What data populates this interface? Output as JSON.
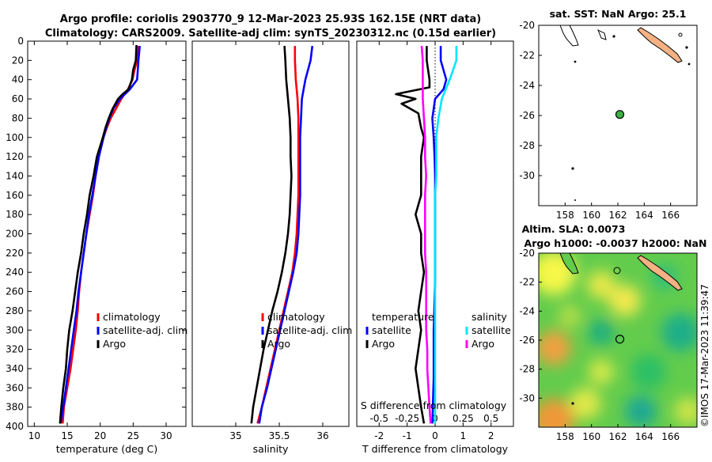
{
  "titles": {
    "line1": "Argo profile: coriolis 2903770_9 12-Mar-2023 25.93S 162.15E (NRT data)",
    "line2": "Climatology: CARS2009. Satellite-adj clim: synTS_20230312.nc (0.15d earlier)"
  },
  "colors": {
    "climatology": "#ff0000",
    "satellite": "#0000ff",
    "argo": "#000000",
    "sal_satellite": "#00e5ff",
    "sal_argo": "#ff00ff",
    "land": "#f4b183"
  },
  "chart_data": [
    {
      "type": "line",
      "name": "temperature-profile",
      "xlabel": "temperature (deg C)",
      "ylabel": "",
      "xlim": [
        9,
        33
      ],
      "ylim": [
        0,
        400
      ],
      "x_ticks": [
        "10",
        "15",
        "20",
        "25",
        "30"
      ],
      "x_tick_values": [
        10,
        15,
        20,
        25,
        30
      ],
      "y_ticks": [
        "0",
        "20",
        "40",
        "60",
        "80",
        "100",
        "120",
        "140",
        "160",
        "180",
        "200",
        "220",
        "240",
        "260",
        "280",
        "300",
        "320",
        "340",
        "360",
        "380",
        "400"
      ],
      "y_tick_values": [
        0,
        20,
        40,
        60,
        80,
        100,
        120,
        140,
        160,
        180,
        200,
        220,
        240,
        260,
        280,
        300,
        320,
        340,
        360,
        380,
        400
      ],
      "legend": [
        "climatology",
        "satellite-adj. clim",
        "Argo"
      ],
      "legend_colors": [
        "#ff0000",
        "#0000ff",
        "#000000"
      ],
      "series": [
        {
          "name": "climatology",
          "color": "#ff0000",
          "depth": [
            5,
            20,
            30,
            40,
            50,
            60,
            70,
            80,
            90,
            100,
            120,
            140,
            160,
            180,
            200,
            220,
            240,
            260,
            280,
            300,
            320,
            340,
            360,
            380,
            397
          ],
          "values": [
            25.8,
            25.6,
            25.2,
            24.9,
            24.2,
            23.2,
            22.4,
            21.6,
            21.0,
            20.5,
            19.8,
            19.3,
            18.9,
            18.4,
            17.9,
            17.5,
            17.1,
            16.8,
            16.6,
            16.3,
            15.9,
            15.5,
            15.0,
            14.5,
            14.3
          ]
        },
        {
          "name": "satellite-adj. clim",
          "color": "#0000ff",
          "depth": [
            5,
            20,
            30,
            40,
            50,
            60,
            70,
            80,
            90,
            100,
            120,
            140,
            160,
            180,
            200,
            220,
            240,
            260,
            280,
            300,
            320,
            340,
            360,
            380,
            397
          ],
          "values": [
            26.0,
            25.8,
            25.7,
            25.6,
            24.5,
            23.0,
            22.0,
            21.4,
            20.9,
            20.5,
            19.8,
            19.3,
            18.8,
            18.3,
            17.9,
            17.5,
            17.1,
            16.7,
            16.4,
            16.0,
            15.6,
            15.2,
            14.8,
            14.4,
            14.0
          ]
        },
        {
          "name": "Argo",
          "color": "#000000",
          "depth": [
            4,
            20,
            30,
            40,
            50,
            55,
            60,
            70,
            80,
            90,
            100,
            120,
            140,
            160,
            180,
            200,
            220,
            240,
            260,
            280,
            300,
            320,
            340,
            360,
            380,
            397
          ],
          "values": [
            25.5,
            25.4,
            25.0,
            24.8,
            24.3,
            23.4,
            22.7,
            21.9,
            21.3,
            20.8,
            20.4,
            19.5,
            19.0,
            18.4,
            18.0,
            17.5,
            17.1,
            16.6,
            16.2,
            15.8,
            15.3,
            15.0,
            14.8,
            14.4,
            14.1,
            13.9
          ]
        }
      ]
    },
    {
      "type": "line",
      "name": "salinity-profile",
      "xlabel": "salinity",
      "xlim": [
        34.5,
        36.3
      ],
      "ylim": [
        0,
        400
      ],
      "x_ticks": [
        "35",
        "35.5",
        "36"
      ],
      "x_tick_values": [
        35,
        35.5,
        36
      ],
      "legend": [
        "climatology",
        "satellite-adj. clim",
        "Argo"
      ],
      "legend_colors": [
        "#ff0000",
        "#0000ff",
        "#000000"
      ],
      "series": [
        {
          "name": "climatology",
          "color": "#ff0000",
          "depth": [
            5,
            20,
            40,
            60,
            80,
            100,
            120,
            140,
            160,
            180,
            200,
            220,
            240,
            260,
            280,
            300,
            320,
            340,
            360,
            380,
            397
          ],
          "values": [
            35.68,
            35.68,
            35.69,
            35.71,
            35.72,
            35.72,
            35.72,
            35.72,
            35.72,
            35.71,
            35.7,
            35.68,
            35.65,
            35.6,
            35.55,
            35.5,
            35.45,
            35.4,
            35.35,
            35.3,
            35.25
          ]
        },
        {
          "name": "satellite-adj. clim",
          "color": "#0000ff",
          "depth": [
            5,
            20,
            40,
            60,
            80,
            100,
            120,
            140,
            160,
            180,
            200,
            220,
            240,
            260,
            280,
            300,
            320,
            340,
            360,
            380,
            397
          ],
          "values": [
            35.88,
            35.86,
            35.8,
            35.76,
            35.75,
            35.74,
            35.74,
            35.74,
            35.74,
            35.73,
            35.72,
            35.7,
            35.66,
            35.61,
            35.56,
            35.51,
            35.46,
            35.41,
            35.36,
            35.3,
            35.27
          ]
        },
        {
          "name": "Argo",
          "color": "#000000",
          "depth": [
            5,
            20,
            40,
            60,
            80,
            100,
            120,
            140,
            160,
            180,
            200,
            220,
            240,
            260,
            280,
            300,
            320,
            340,
            360,
            380,
            397
          ],
          "values": [
            35.56,
            35.57,
            35.58,
            35.6,
            35.62,
            35.63,
            35.63,
            35.64,
            35.63,
            35.62,
            35.6,
            35.57,
            35.53,
            35.48,
            35.42,
            35.37,
            35.32,
            35.28,
            35.24,
            35.2,
            35.18
          ]
        }
      ]
    },
    {
      "type": "line",
      "name": "difference-profile",
      "xlabel": "T difference from climatology",
      "xlabel_top": "S difference from climatology",
      "xlim": [
        -2.8,
        2.8
      ],
      "ylim": [
        0,
        400
      ],
      "x_ticks": [
        "-2",
        "-1",
        "0",
        "1",
        "2"
      ],
      "x_tick_values": [
        -2,
        -1,
        0,
        1,
        2
      ],
      "x_ticks_top": [
        "-0.5",
        "-0.25",
        "0",
        "0.25",
        "0.5"
      ],
      "legend_temperature_title": "temperature",
      "legend_salinity_title": "salinity",
      "legend_temperature": [
        "satellite",
        "Argo"
      ],
      "legend_salinity": [
        "satellite",
        "Argo"
      ],
      "series": [
        {
          "name": "temperature satellite",
          "color": "#0000ff",
          "depth": [
            5,
            20,
            40,
            50,
            60,
            80,
            100,
            120,
            140,
            160,
            200,
            250,
            300,
            350,
            397
          ],
          "values": [
            0.2,
            0.2,
            0.4,
            0.3,
            0.0,
            -0.1,
            -0.05,
            -0.02,
            0.0,
            0.0,
            0.0,
            0.0,
            -0.05,
            -0.05,
            -0.1
          ]
        },
        {
          "name": "temperature Argo",
          "color": "#000000",
          "depth": [
            5,
            20,
            40,
            48,
            55,
            60,
            65,
            75,
            90,
            100,
            120,
            140,
            160,
            180,
            200,
            220,
            240,
            260,
            280,
            300,
            320,
            340,
            360,
            380,
            397
          ],
          "values": [
            -0.3,
            -0.3,
            -0.2,
            -0.2,
            -1.4,
            -0.7,
            -1.2,
            -0.6,
            -0.5,
            -0.4,
            -0.5,
            -0.5,
            -0.5,
            -0.7,
            -0.5,
            -0.5,
            -0.4,
            -0.5,
            -0.6,
            -0.5,
            -0.6,
            -0.7,
            -0.6,
            -0.5,
            -0.4
          ]
        },
        {
          "name": "salinity satellite",
          "color": "#00e5ff",
          "depth": [
            5,
            20,
            40,
            60,
            80,
            100,
            120,
            140,
            160,
            200,
            250,
            300,
            350,
            397
          ],
          "values": [
            0.19,
            0.19,
            0.13,
            0.06,
            0.03,
            0.01,
            0.01,
            0.01,
            0.0,
            0.0,
            0.0,
            0.0,
            0.0,
            0.0
          ]
        },
        {
          "name": "salinity Argo",
          "color": "#ff00ff",
          "depth": [
            5,
            20,
            40,
            60,
            80,
            100,
            120,
            140,
            160,
            180,
            200,
            220,
            240,
            260,
            280,
            300,
            320,
            340,
            360,
            380,
            397
          ],
          "values": [
            -0.12,
            -0.11,
            -0.11,
            -0.11,
            -0.1,
            -0.09,
            -0.09,
            -0.08,
            -0.09,
            -0.09,
            -0.09,
            -0.09,
            -0.08,
            -0.08,
            -0.08,
            -0.08,
            -0.07,
            -0.07,
            -0.06,
            -0.05,
            -0.04
          ]
        }
      ]
    },
    {
      "type": "map",
      "name": "sst-map",
      "title": "sat. SST: NaN Argo: 25.1",
      "xlim": [
        156,
        168
      ],
      "ylim": [
        -32,
        -20
      ],
      "x_ticks": [
        "158",
        "160",
        "162",
        "164",
        "166"
      ],
      "x_tick_values": [
        158,
        160,
        162,
        164,
        166
      ],
      "y_ticks": [
        "-20",
        "-22",
        "-24",
        "-26",
        "-28",
        "-30"
      ],
      "y_tick_values": [
        -20,
        -22,
        -24,
        -26,
        -28,
        -30
      ],
      "marker": {
        "lon": 162.15,
        "lat": -25.93,
        "color": "#3cb043"
      }
    },
    {
      "type": "heatmap",
      "name": "sla-map",
      "title_line1": "Altim. SLA: 0.0073",
      "title_line2": "Argo h1000: -0.0037 h2000: NaN",
      "xlim": [
        156,
        168
      ],
      "ylim": [
        -32,
        -20
      ],
      "x_ticks": [
        "158",
        "160",
        "162",
        "164",
        "166"
      ],
      "x_tick_values": [
        158,
        160,
        162,
        164,
        166
      ],
      "y_ticks": [
        "-20",
        "-22",
        "-24",
        "-26",
        "-28",
        "-30"
      ],
      "y_tick_values": [
        -20,
        -22,
        -24,
        -26,
        -28,
        -30
      ],
      "marker": {
        "lon": 162.15,
        "lat": -25.93
      }
    }
  ],
  "credit": "©IMOS 17-Mar-2023 11:39:47"
}
